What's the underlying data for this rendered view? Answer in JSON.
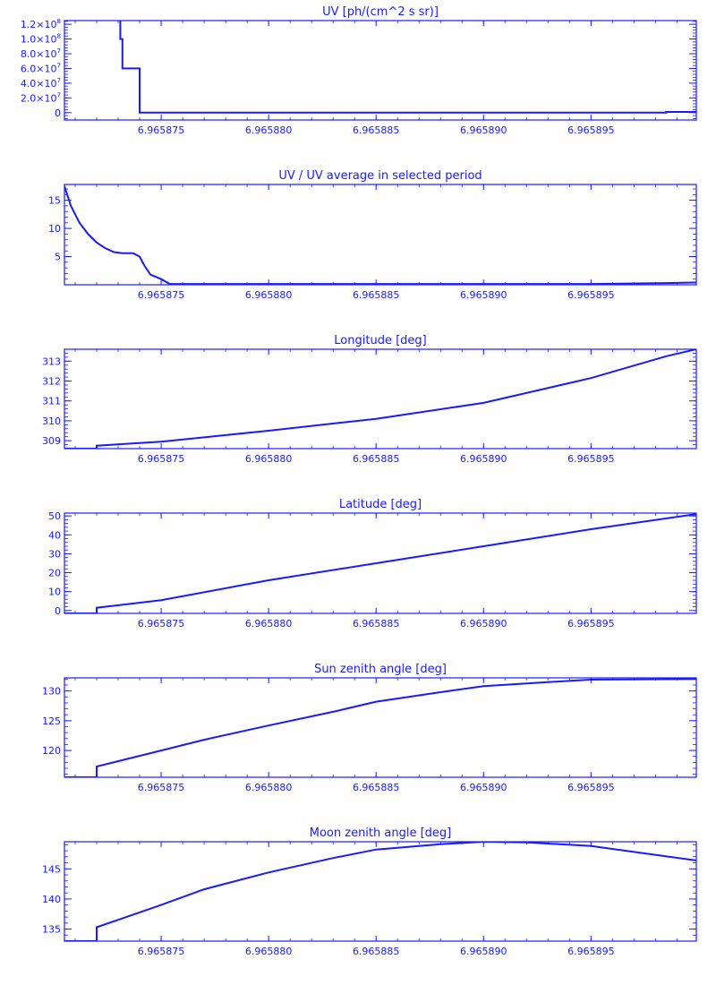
{
  "colors": {
    "line": "#1a1aff",
    "background": "#ffffff"
  },
  "chart_data": [
    {
      "type": "line",
      "title": "UV [ph/(cm^2 s sr)]",
      "xlim": [
        6.9658705,
        6.9658999
      ],
      "x_ticks": [
        6.965875,
        6.96588,
        6.965885,
        6.96589,
        6.965895
      ],
      "x_tick_labels": [
        "6.965875",
        "6.965880",
        "6.965885",
        "6.965890",
        "6.965895"
      ],
      "ylim": [
        -10000000.0,
        125000000.0
      ],
      "y_ticks": [
        0,
        20000000.0,
        40000000.0,
        60000000.0,
        80000000.0,
        100000000.0,
        120000000.0
      ],
      "y_tick_labels": [
        {
          "mantissa": "0",
          "exp": ""
        },
        {
          "mantissa": "2.0×10",
          "exp": "7"
        },
        {
          "mantissa": "4.0×10",
          "exp": "7"
        },
        {
          "mantissa": "6.0×10",
          "exp": "7"
        },
        {
          "mantissa": "8.0×10",
          "exp": "7"
        },
        {
          "mantissa": "1.0×10",
          "exp": "8"
        },
        {
          "mantissa": "1.2×10",
          "exp": "8"
        }
      ],
      "step": true,
      "x": [
        6.965873,
        6.9658731,
        6.9658732,
        6.9658739,
        6.965874,
        6.965875,
        6.96588,
        6.965885,
        6.96589,
        6.965895,
        6.9658985,
        6.9658999
      ],
      "y": [
        130000000.0,
        100000000.0,
        60000000.0,
        60000000.0,
        100000.0,
        100000.0,
        100000.0,
        100000.0,
        100000.0,
        100000.0,
        1000000.0,
        1500000.0
      ]
    },
    {
      "type": "line",
      "title": "UV / UV average in selected period",
      "xlim": [
        6.9658705,
        6.9658999
      ],
      "x_ticks": [
        6.965875,
        6.96588,
        6.965885,
        6.96589,
        6.965895
      ],
      "x_tick_labels": [
        "6.965875",
        "6.965880",
        "6.965885",
        "6.965890",
        "6.965895"
      ],
      "ylim": [
        0,
        17.8
      ],
      "y_ticks": [
        5,
        10,
        15
      ],
      "y_tick_labels": [
        "5",
        "10",
        "15"
      ],
      "x": [
        6.9658705,
        6.9658708,
        6.9658712,
        6.9658716,
        6.965872,
        6.9658724,
        6.9658728,
        6.9658732,
        6.9658737,
        6.965874,
        6.9658742,
        6.9658745,
        6.965875,
        6.9658754,
        6.96588,
        6.965885,
        6.96589,
        6.965895,
        6.9658985,
        6.9658999
      ],
      "y": [
        17.5,
        14.0,
        11.0,
        9.0,
        7.5,
        6.5,
        5.8,
        5.6,
        5.6,
        5.0,
        3.5,
        1.8,
        1.0,
        0.15,
        0.15,
        0.15,
        0.15,
        0.15,
        0.3,
        0.4
      ]
    },
    {
      "type": "line",
      "title": "Longitude [deg]",
      "xlim": [
        6.9658705,
        6.9658999
      ],
      "x_ticks": [
        6.965875,
        6.96588,
        6.965885,
        6.96589,
        6.965895
      ],
      "x_tick_labels": [
        "6.965875",
        "6.965880",
        "6.965885",
        "6.965890",
        "6.965895"
      ],
      "ylim": [
        308.6,
        313.6
      ],
      "y_ticks": [
        309,
        310,
        311,
        312,
        313
      ],
      "y_tick_labels": [
        "309",
        "310",
        "311",
        "312",
        "313"
      ],
      "x": [
        6.9658705,
        6.965872,
        6.965872,
        6.965875,
        6.96588,
        6.965885,
        6.96589,
        6.965895,
        6.9658985,
        6.9658999
      ],
      "y": [
        308.6,
        308.6,
        308.75,
        308.95,
        309.5,
        310.1,
        310.9,
        312.15,
        313.25,
        313.6
      ]
    },
    {
      "type": "line",
      "title": "Latitude [deg]",
      "xlim": [
        6.9658705,
        6.9658999
      ],
      "x_ticks": [
        6.965875,
        6.96588,
        6.965885,
        6.96589,
        6.965895
      ],
      "x_tick_labels": [
        "6.965875",
        "6.965880",
        "6.965885",
        "6.965890",
        "6.965895"
      ],
      "ylim": [
        -1.5,
        51.5
      ],
      "y_ticks": [
        0,
        10,
        20,
        30,
        40,
        50
      ],
      "y_tick_labels": [
        "0",
        "10",
        "20",
        "30",
        "40",
        "50"
      ],
      "x": [
        6.9658705,
        6.965872,
        6.965872,
        6.965875,
        6.96588,
        6.965885,
        6.96589,
        6.965895,
        6.9658999
      ],
      "y": [
        -1.5,
        -1.5,
        1.5,
        5.5,
        16,
        25,
        34,
        43,
        51
      ]
    },
    {
      "type": "line",
      "title": "Sun zenith angle [deg]",
      "xlim": [
        6.9658705,
        6.9658999
      ],
      "x_ticks": [
        6.965875,
        6.96588,
        6.965885,
        6.96589,
        6.965895
      ],
      "x_tick_labels": [
        "6.965875",
        "6.965880",
        "6.965885",
        "6.965890",
        "6.965895"
      ],
      "ylim": [
        115.5,
        132.2
      ],
      "y_ticks": [
        120,
        125,
        130
      ],
      "y_tick_labels": [
        "120",
        "125",
        "130"
      ],
      "x": [
        6.9658705,
        6.965872,
        6.965872,
        6.965875,
        6.965877,
        6.96588,
        6.965883,
        6.965885,
        6.965888,
        6.96589,
        6.965893,
        6.965895,
        6.9658999
      ],
      "y": [
        115.5,
        115.5,
        117.3,
        120.0,
        121.8,
        124.2,
        126.5,
        128.2,
        129.8,
        130.8,
        131.5,
        131.9,
        132.0
      ]
    },
    {
      "type": "line",
      "title": "Moon zenith angle [deg]",
      "xlim": [
        6.9658705,
        6.9658999
      ],
      "x_ticks": [
        6.965875,
        6.96588,
        6.965885,
        6.96589,
        6.965895
      ],
      "x_tick_labels": [
        "6.965875",
        "6.965880",
        "6.965885",
        "6.965890",
        "6.965895"
      ],
      "ylim": [
        133,
        149.5
      ],
      "y_ticks": [
        135,
        140,
        145
      ],
      "y_tick_labels": [
        "135",
        "140",
        "145"
      ],
      "x": [
        6.9658705,
        6.965872,
        6.965872,
        6.965875,
        6.965877,
        6.96588,
        6.965883,
        6.965885,
        6.965888,
        6.96589,
        6.965892,
        6.965895,
        6.9658999
      ],
      "y": [
        133,
        133,
        135.3,
        139.0,
        141.6,
        144.4,
        146.8,
        148.2,
        149.1,
        149.5,
        149.4,
        148.8,
        146.4
      ]
    }
  ]
}
